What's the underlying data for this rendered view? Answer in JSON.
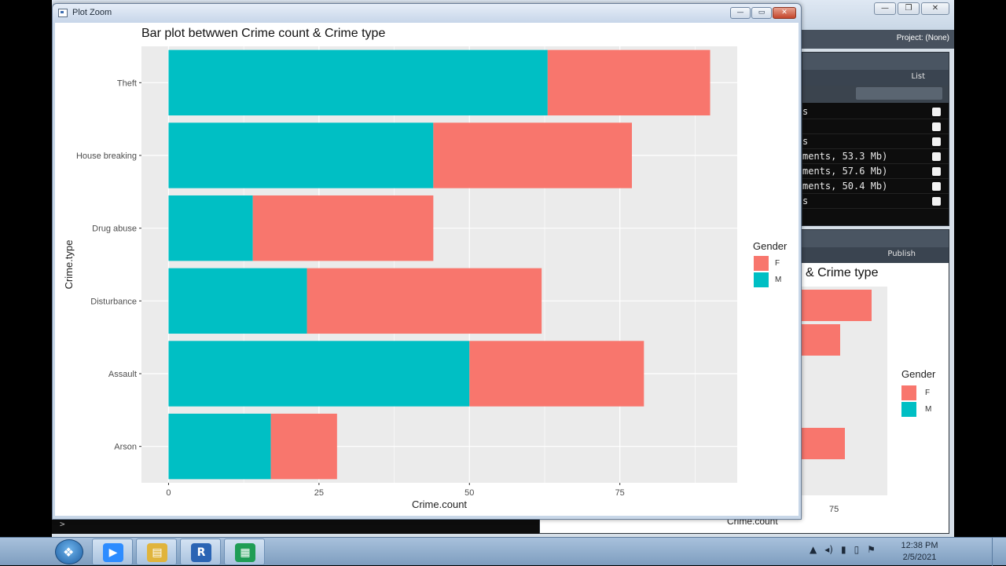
{
  "rstudio": {
    "project_label": "Project: (None)",
    "env_list_label": "List",
    "env_lines": [
      "s",
      "",
      "s",
      "ments, 53.3 Mb)",
      "ments, 57.6 Mb)",
      "ments, 50.4 Mb)",
      "s"
    ],
    "plots_publish_label": "Publish",
    "bg_plot_title_fragment": "& Crime type",
    "bg_legend_title": "Gender",
    "bg_legend_items": [
      "F",
      "M"
    ],
    "bg_x_tick": "75",
    "bg_x_label": "Crime.count",
    "console_prompt": ">"
  },
  "zoom_window": {
    "title": "Plot Zoom",
    "minimize": "—",
    "maximize": "▭",
    "close": "✕"
  },
  "plot": {
    "title": "Bar plot betwwen Crime count & Crime type",
    "legend_title": "Gender",
    "colors": {
      "F": "#f8766d",
      "M": "#00bfc4",
      "panel": "#ebebeb",
      "grid": "#ffffff"
    }
  },
  "chart_data": {
    "type": "bar",
    "orientation": "horizontal",
    "stacked": true,
    "title": "Bar plot betwwen Crime count & Crime type",
    "xlabel": "Crime.count",
    "ylabel": "Crime.type",
    "categories": [
      "Theft",
      "House breaking",
      "Drug abuse",
      "Disturbance",
      "Assault",
      "Arson"
    ],
    "series": [
      {
        "name": "M",
        "values": [
          63,
          44,
          14,
          23,
          50,
          17
        ]
      },
      {
        "name": "F",
        "values": [
          27,
          33,
          30,
          39,
          29,
          11
        ]
      }
    ],
    "xlim": [
      -4.5,
      94.5
    ],
    "xticks": [
      0,
      25,
      50,
      75
    ],
    "xtick_labels": [
      "0",
      "25",
      "50",
      "75"
    ],
    "legend": {
      "title": "Gender",
      "items": [
        "F",
        "M"
      ],
      "position": "right"
    },
    "grid": true
  },
  "taskbar": {
    "apps": [
      {
        "name": "zoom",
        "glyph": "▶",
        "color": "#2d8cff"
      },
      {
        "name": "explorer",
        "glyph": "▤",
        "color": "#e0b43c"
      },
      {
        "name": "r",
        "glyph": "R",
        "color": "#2a64b4"
      },
      {
        "name": "sheets",
        "glyph": "▦",
        "color": "#1f9d55"
      }
    ],
    "tray": [
      "▲",
      "◂)",
      "▮",
      "▯",
      "⚑"
    ],
    "time": "12:38 PM",
    "date": "2/5/2021"
  }
}
